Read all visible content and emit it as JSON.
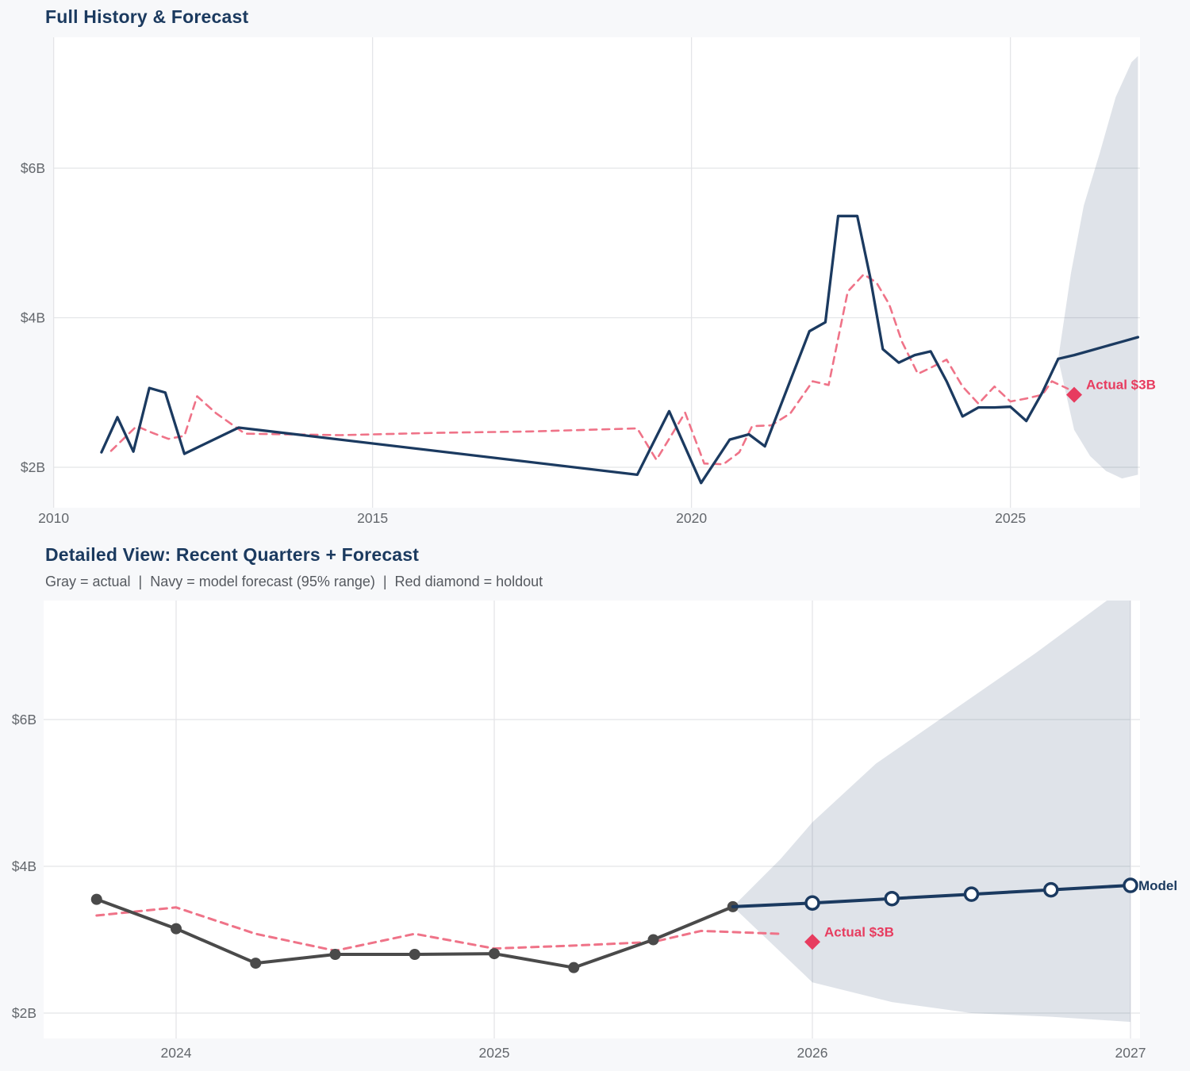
{
  "page": {
    "background": "#f7f8fa",
    "plot_background": "#ffffff",
    "gridline_color": "#e4e5e8",
    "tick_label_color": "#63676c"
  },
  "colors": {
    "navy": "#1b3a60",
    "pink_dashed": "#ef7388",
    "gray_actual": "#4a4a4a",
    "crimson": "#e73c5f",
    "band_fill": "rgba(38,70,110,0.15)"
  },
  "chart_data": [
    {
      "type": "line",
      "title": "Full History & Forecast",
      "x_axis": {
        "ticks": [
          {
            "v": 2010,
            "label": "2010"
          },
          {
            "v": 2015,
            "label": "2015"
          },
          {
            "v": 2020,
            "label": "2020"
          },
          {
            "v": 2025,
            "label": "2025"
          }
        ],
        "range": [
          2010.0,
          2027.05
        ]
      },
      "y_axis": {
        "ticks": [
          {
            "v": 2,
            "label": "$2B"
          },
          {
            "v": 4,
            "label": "$4B"
          },
          {
            "v": 6,
            "label": "$6B"
          }
        ],
        "range": [
          1.45,
          7.75
        ]
      },
      "series": [
        {
          "name": "forecast-95-band",
          "type": "band",
          "color": "rgba(38,70,110,0.15)",
          "upper": [
            [
              2025.75,
              3.45
            ],
            [
              2025.95,
              4.6
            ],
            [
              2026.15,
              5.5
            ],
            [
              2026.4,
              6.2
            ],
            [
              2026.65,
              6.95
            ],
            [
              2026.9,
              7.42
            ],
            [
              2027.0,
              7.5
            ]
          ],
          "lower": [
            [
              2025.75,
              3.45
            ],
            [
              2026.0,
              2.5
            ],
            [
              2026.25,
              2.15
            ],
            [
              2026.5,
              1.95
            ],
            [
              2026.75,
              1.85
            ],
            [
              2027.0,
              1.9
            ]
          ]
        },
        {
          "name": "model-fit",
          "type": "line",
          "color": "#ef7388",
          "width": 2.6,
          "dash": true,
          "points": [
            [
              2010.9,
              2.22
            ],
            [
              2011.3,
              2.55
            ],
            [
              2011.55,
              2.46
            ],
            [
              2011.8,
              2.38
            ],
            [
              2012.05,
              2.42
            ],
            [
              2012.25,
              2.95
            ],
            [
              2012.55,
              2.72
            ],
            [
              2013.0,
              2.45
            ],
            [
              2014.5,
              2.43
            ],
            [
              2016.0,
              2.46
            ],
            [
              2017.5,
              2.48
            ],
            [
              2019.15,
              2.52
            ],
            [
              2019.45,
              2.1
            ],
            [
              2019.9,
              2.73
            ],
            [
              2020.2,
              2.05
            ],
            [
              2020.5,
              2.04
            ],
            [
              2020.75,
              2.2
            ],
            [
              2020.95,
              2.55
            ],
            [
              2021.25,
              2.56
            ],
            [
              2021.55,
              2.72
            ],
            [
              2021.9,
              3.15
            ],
            [
              2022.15,
              3.1
            ],
            [
              2022.45,
              4.35
            ],
            [
              2022.7,
              4.58
            ],
            [
              2022.9,
              4.47
            ],
            [
              2023.1,
              4.18
            ],
            [
              2023.3,
              3.68
            ],
            [
              2023.55,
              3.25
            ],
            [
              2023.75,
              3.33
            ],
            [
              2024.0,
              3.44
            ],
            [
              2024.25,
              3.08
            ],
            [
              2024.5,
              2.85
            ],
            [
              2024.75,
              3.08
            ],
            [
              2025.0,
              2.88
            ],
            [
              2025.25,
              2.92
            ],
            [
              2025.5,
              2.97
            ],
            [
              2025.65,
              3.15
            ],
            [
              2025.9,
              3.05
            ]
          ]
        },
        {
          "name": "actual-history",
          "type": "line",
          "color": "#1b3a60",
          "width": 3.3,
          "dash": false,
          "points": [
            [
              2010.75,
              2.2
            ],
            [
              2011.0,
              2.67
            ],
            [
              2011.25,
              2.21
            ],
            [
              2011.5,
              3.06
            ],
            [
              2011.75,
              3.0
            ],
            [
              2012.05,
              2.18
            ],
            [
              2012.9,
              2.53
            ],
            [
              2019.15,
              1.9
            ],
            [
              2019.65,
              2.75
            ],
            [
              2020.15,
              1.79
            ],
            [
              2020.6,
              2.37
            ],
            [
              2020.9,
              2.44
            ],
            [
              2021.15,
              2.28
            ],
            [
              2021.5,
              3.05
            ],
            [
              2021.85,
              3.82
            ],
            [
              2022.1,
              3.94
            ],
            [
              2022.3,
              5.36
            ],
            [
              2022.6,
              5.36
            ],
            [
              2022.8,
              4.55
            ],
            [
              2023.0,
              3.58
            ],
            [
              2023.25,
              3.4
            ],
            [
              2023.5,
              3.5
            ],
            [
              2023.75,
              3.55
            ],
            [
              2024.0,
              3.15
            ],
            [
              2024.25,
              2.68
            ],
            [
              2024.5,
              2.8
            ],
            [
              2024.75,
              2.8
            ],
            [
              2025.0,
              2.81
            ],
            [
              2025.25,
              2.62
            ],
            [
              2025.5,
              3.0
            ],
            [
              2025.75,
              3.45
            ]
          ]
        },
        {
          "name": "model-forecast",
          "type": "line",
          "color": "#1b3a60",
          "width": 3.3,
          "dash": false,
          "points": [
            [
              2025.75,
              3.45
            ],
            [
              2026.0,
              3.5
            ],
            [
              2026.25,
              3.56
            ],
            [
              2026.5,
              3.62
            ],
            [
              2026.75,
              3.68
            ],
            [
              2027.0,
              3.74
            ]
          ]
        }
      ],
      "annotations": [
        {
          "type": "diamond",
          "x": 2026.0,
          "y": 2.97,
          "label": "Actual $3B",
          "color": "#e73c5f"
        }
      ]
    },
    {
      "type": "line",
      "title": "Detailed View: Recent Quarters + Forecast",
      "subtitle": "Gray = actual  |  Navy = model forecast (95% range)  |  Red diamond = holdout",
      "x_axis": {
        "ticks": [
          {
            "v": 2024,
            "label": "2024"
          },
          {
            "v": 2025,
            "label": "2025"
          },
          {
            "v": 2026,
            "label": "2026"
          },
          {
            "v": 2027,
            "label": "2027"
          }
        ],
        "range": [
          2023.58,
          2027.03
        ]
      },
      "y_axis": {
        "ticks": [
          {
            "v": 2,
            "label": "$2B"
          },
          {
            "v": 4,
            "label": "$4B"
          },
          {
            "v": 6,
            "label": "$6B"
          }
        ],
        "range": [
          1.65,
          7.62
        ]
      },
      "series": [
        {
          "name": "forecast-95-band",
          "type": "band",
          "color": "rgba(38,70,110,0.15)",
          "upper": [
            [
              2025.75,
              3.45
            ],
            [
              2025.9,
              4.1
            ],
            [
              2026.0,
              4.6
            ],
            [
              2026.2,
              5.4
            ],
            [
              2026.4,
              6.0
            ],
            [
              2026.7,
              6.9
            ],
            [
              2026.95,
              7.7
            ],
            [
              2027.0,
              7.8
            ]
          ],
          "lower": [
            [
              2025.75,
              3.45
            ],
            [
              2026.0,
              2.42
            ],
            [
              2026.25,
              2.15
            ],
            [
              2026.5,
              2.0
            ],
            [
              2026.75,
              1.95
            ],
            [
              2027.0,
              1.88
            ]
          ]
        },
        {
          "name": "model-fit",
          "type": "line",
          "color": "#ef7388",
          "width": 3.0,
          "dash": true,
          "points": [
            [
              2023.75,
              3.33
            ],
            [
              2024.0,
              3.44
            ],
            [
              2024.25,
              3.08
            ],
            [
              2024.5,
              2.85
            ],
            [
              2024.75,
              3.08
            ],
            [
              2025.0,
              2.88
            ],
            [
              2025.25,
              2.92
            ],
            [
              2025.5,
              2.97
            ],
            [
              2025.65,
              3.12
            ],
            [
              2025.9,
              3.08
            ]
          ]
        },
        {
          "name": "actual-quarters",
          "type": "line",
          "color": "#4a4a4a",
          "width": 4.0,
          "dash": false,
          "marker": "dot",
          "points": [
            [
              2023.75,
              3.55
            ],
            [
              2024.0,
              3.15
            ],
            [
              2024.25,
              2.68
            ],
            [
              2024.5,
              2.8
            ],
            [
              2024.75,
              2.8
            ],
            [
              2025.0,
              2.81
            ],
            [
              2025.25,
              2.62
            ],
            [
              2025.5,
              3.0
            ],
            [
              2025.75,
              3.45
            ]
          ]
        },
        {
          "name": "model-forecast",
          "type": "line",
          "color": "#1b3a60",
          "width": 4.0,
          "dash": false,
          "marker": "open-circle",
          "marker_from": 2026.0,
          "points": [
            [
              2025.75,
              3.45
            ],
            [
              2026.0,
              3.5
            ],
            [
              2026.25,
              3.56
            ],
            [
              2026.5,
              3.62
            ],
            [
              2026.75,
              3.68
            ],
            [
              2027.0,
              3.74
            ]
          ]
        }
      ],
      "annotations": [
        {
          "type": "diamond",
          "x": 2026.0,
          "y": 2.97,
          "label": "Actual $3B",
          "color": "#e73c5f"
        },
        {
          "type": "label",
          "x": 2027.0,
          "y": 3.74,
          "text": "Model",
          "color": "#1b3a5f"
        }
      ]
    }
  ]
}
